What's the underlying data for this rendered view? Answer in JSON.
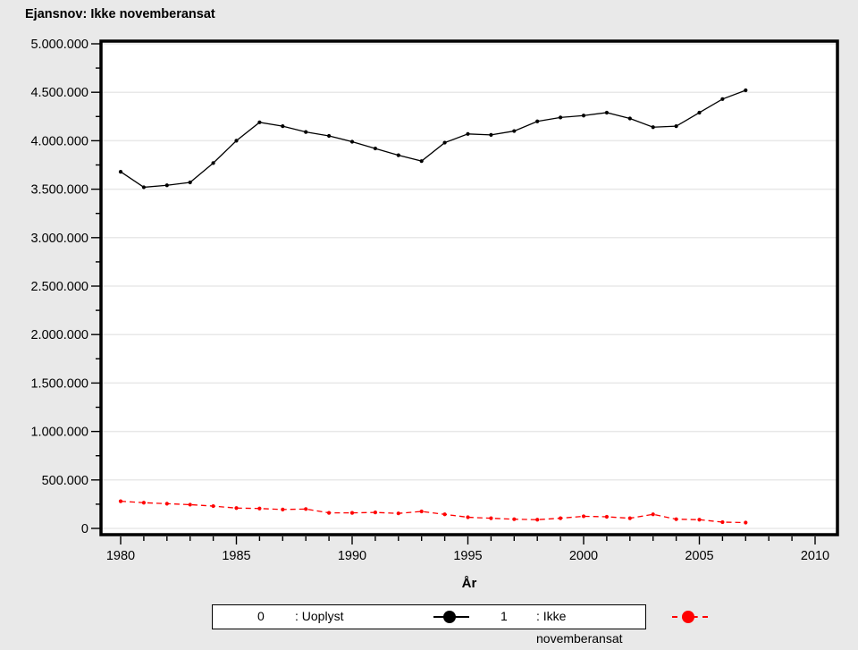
{
  "title": "Ejansnov: Ikke novemberansat",
  "colors": {
    "background": "#e9e9e9",
    "plot_background": "#ffffff",
    "gridline": "#e8e8e8",
    "axis": "#000000",
    "series_0": "#000000",
    "series_1": "#ff0000"
  },
  "chart_data": {
    "type": "line",
    "title": "Ejansnov: Ikke novemberansat",
    "xlabel": "År",
    "ylabel": "",
    "grid": "horizontal-major",
    "legend_position": "bottom-center",
    "x": [
      1980,
      1981,
      1982,
      1983,
      1984,
      1985,
      1986,
      1987,
      1988,
      1989,
      1990,
      1991,
      1992,
      1993,
      1994,
      1995,
      1996,
      1997,
      1998,
      1999,
      2000,
      2001,
      2002,
      2003,
      2004,
      2005,
      2006,
      2007
    ],
    "series": [
      {
        "name": "0",
        "label": ": Uoplyst",
        "color": "#000000",
        "line_style": "solid",
        "marker": "filled-circle",
        "values": [
          3680000,
          3520000,
          3540000,
          3570000,
          3770000,
          4000000,
          4190000,
          4150000,
          4090000,
          4050000,
          3990000,
          3920000,
          3850000,
          3790000,
          3980000,
          4070000,
          4060000,
          4100000,
          4200000,
          4240000,
          4260000,
          4290000,
          4230000,
          4140000,
          4150000,
          4290000,
          4430000,
          4520000
        ]
      },
      {
        "name": "1",
        "label": ": Ikke novemberansat",
        "color": "#ff0000",
        "line_style": "dashed",
        "marker": "filled-circle",
        "values": [
          280000,
          265000,
          255000,
          245000,
          230000,
          210000,
          205000,
          195000,
          200000,
          160000,
          160000,
          165000,
          155000,
          175000,
          145000,
          115000,
          105000,
          95000,
          90000,
          105000,
          125000,
          120000,
          105000,
          145000,
          95000,
          90000,
          65000,
          60000
        ]
      }
    ],
    "xlim": [
      1979,
      2011
    ],
    "ylim": [
      0,
      5000000
    ],
    "xticks": {
      "major": [
        1980,
        1985,
        1990,
        1995,
        2000,
        2005,
        2010
      ],
      "minor_step": 1,
      "labels": [
        "1980",
        "1985",
        "1990",
        "1995",
        "2000",
        "2005",
        "2010"
      ]
    },
    "yticks": {
      "major_step": 500000,
      "minor_step": 250000,
      "labels": [
        "0",
        "500.000",
        "1.000.000",
        "1.500.000",
        "2.000.000",
        "2.500.000",
        "3.000.000",
        "3.500.000",
        "4.000.000",
        "4.500.000",
        "5.000.000"
      ]
    }
  }
}
